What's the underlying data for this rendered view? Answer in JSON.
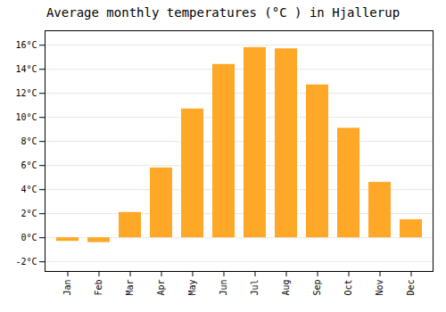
{
  "chart_data": {
    "type": "bar",
    "title": "Average monthly temperatures (°C ) in Hjallerup",
    "categories": [
      "Jan",
      "Feb",
      "Mar",
      "Apr",
      "May",
      "Jun",
      "Jul",
      "Aug",
      "Sep",
      "Oct",
      "Nov",
      "Dec"
    ],
    "values": [
      -0.3,
      -0.4,
      2.1,
      5.8,
      10.7,
      14.4,
      15.8,
      15.7,
      12.7,
      9.1,
      4.6,
      1.5
    ],
    "color": "#FFA726",
    "ylim": [
      -2.8,
      17.2
    ],
    "yticks": [
      {
        "value": -2,
        "label": "-2°C"
      },
      {
        "value": 0,
        "label": "0°C"
      },
      {
        "value": 2,
        "label": "2°C"
      },
      {
        "value": 4,
        "label": "4°C"
      },
      {
        "value": 6,
        "label": "6°C"
      },
      {
        "value": 8,
        "label": "8°C"
      },
      {
        "value": 10,
        "label": "10°C"
      },
      {
        "value": 12,
        "label": "12°C"
      },
      {
        "value": 14,
        "label": "14°C"
      },
      {
        "value": 16,
        "label": "16°C"
      }
    ],
    "grid": true
  }
}
